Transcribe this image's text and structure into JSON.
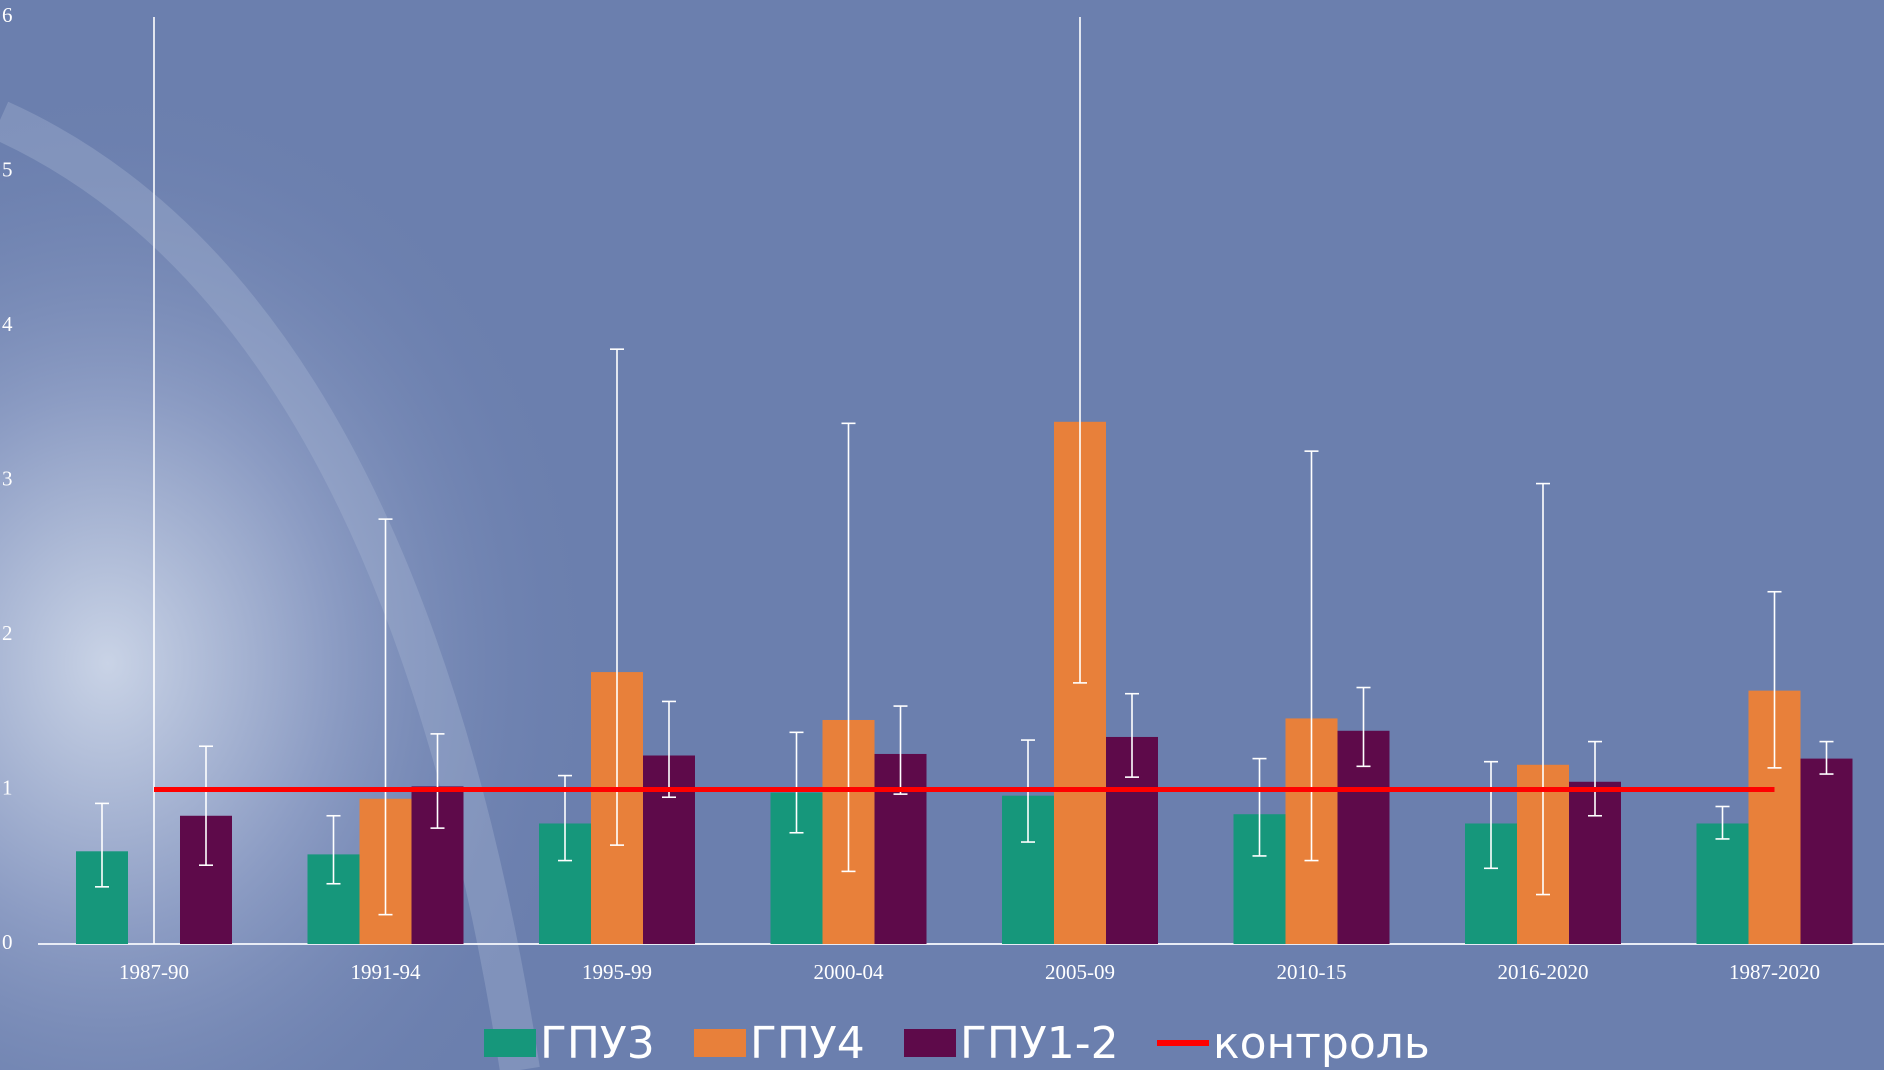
{
  "chart_data": {
    "type": "bar",
    "categories": [
      "1987-90",
      "1991-94",
      "1995-99",
      "2000-04",
      "2005-09",
      "2010-15",
      "2016-2020",
      "1987-2020"
    ],
    "ylim": [
      0,
      6
    ],
    "yticks": [
      0,
      1,
      2,
      3,
      4,
      5,
      6
    ],
    "series": [
      {
        "name": "ГПУ3",
        "color": "#16977b",
        "values": [
          0.6,
          0.58,
          0.78,
          0.98,
          0.96,
          0.84,
          0.78,
          0.78
        ],
        "err_low": [
          0.37,
          0.39,
          0.54,
          0.72,
          0.66,
          0.57,
          0.49,
          0.68
        ],
        "err_high": [
          0.91,
          0.83,
          1.09,
          1.37,
          1.32,
          1.2,
          1.18,
          0.89
        ]
      },
      {
        "name": "ГПУ4",
        "color": "#e8803a",
        "values": [
          null,
          0.94,
          1.76,
          1.45,
          3.38,
          1.46,
          1.16,
          1.64
        ],
        "err_low": [
          0,
          0.19,
          0.64,
          0.47,
          1.69,
          0.54,
          0.32,
          1.14
        ],
        "err_high": [
          6,
          2.75,
          3.85,
          3.37,
          6,
          3.19,
          2.98,
          2.28
        ]
      },
      {
        "name": "ГПУ1-2",
        "color": "#5e0a4a",
        "values": [
          0.83,
          1.02,
          1.22,
          1.23,
          1.34,
          1.38,
          1.05,
          1.2
        ],
        "err_low": [
          0.51,
          0.75,
          0.95,
          0.97,
          1.08,
          1.15,
          0.83,
          1.1
        ],
        "err_high": [
          1.28,
          1.36,
          1.57,
          1.54,
          1.62,
          1.66,
          1.31,
          1.31
        ]
      },
      {
        "name": "контроль",
        "color": "#ff0000",
        "kind": "line",
        "values": [
          1,
          1,
          1,
          1,
          1,
          1,
          1,
          1
        ]
      }
    ]
  }
}
